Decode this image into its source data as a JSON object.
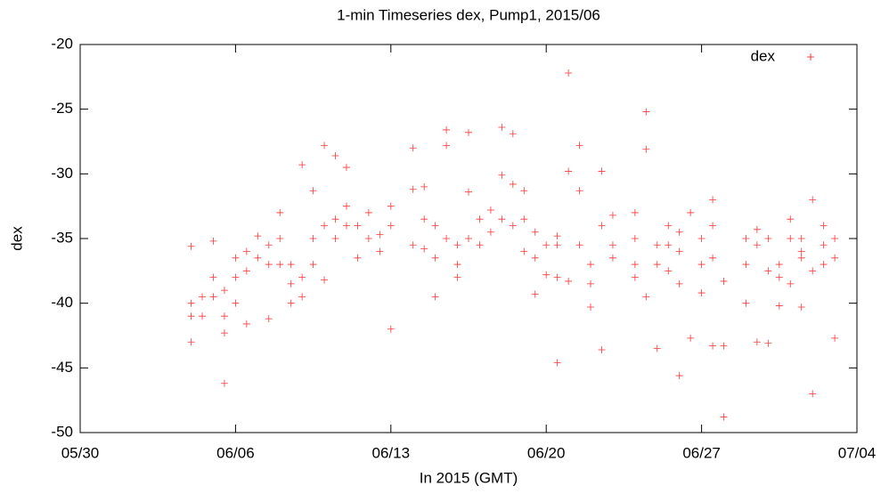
{
  "chart_data": {
    "type": "scatter",
    "title": "1-min Timeseries dex, Pump1, 2015/06",
    "x_label": "In 2015 (GMT)",
    "y_label": "dex",
    "legend": "top-right",
    "xlim": [
      "2015-05-30 00:00",
      "2015-07-04 00:00"
    ],
    "xticks": [
      {
        "value": "2015-05-30 00:00",
        "label": "05/30"
      },
      {
        "value": "2015-06-06 00:00",
        "label": "06/06"
      },
      {
        "value": "2015-06-13 00:00",
        "label": "06/13"
      },
      {
        "value": "2015-06-20 00:00",
        "label": "06/20"
      },
      {
        "value": "2015-06-27 00:00",
        "label": "06/27"
      },
      {
        "value": "2015-07-04 00:00",
        "label": "07/04"
      }
    ],
    "ylim": [
      -50,
      -20
    ],
    "yticks": [
      -50,
      -45,
      -40,
      -35,
      -30,
      -25,
      -20
    ],
    "x": [
      "2015-06-04 00:00",
      "2015-06-04 00:00",
      "2015-06-04 00:00",
      "2015-06-04 00:00",
      "2015-06-04 12:00",
      "2015-06-04 12:00",
      "2015-06-05 00:00",
      "2015-06-05 00:00",
      "2015-06-05 00:00",
      "2015-06-05 12:00",
      "2015-06-05 12:00",
      "2015-06-05 12:00",
      "2015-06-05 12:00",
      "2015-06-06 00:00",
      "2015-06-06 00:00",
      "2015-06-06 00:00",
      "2015-06-06 12:00",
      "2015-06-06 12:00",
      "2015-06-06 12:00",
      "2015-06-07 00:00",
      "2015-06-07 00:00",
      "2015-06-07 12:00",
      "2015-06-07 12:00",
      "2015-06-07 12:00",
      "2015-06-08 00:00",
      "2015-06-08 00:00",
      "2015-06-08 00:00",
      "2015-06-08 12:00",
      "2015-06-08 12:00",
      "2015-06-08 12:00",
      "2015-06-09 00:00",
      "2015-06-09 00:00",
      "2015-06-09 00:00",
      "2015-06-09 12:00",
      "2015-06-09 12:00",
      "2015-06-09 12:00",
      "2015-06-10 00:00",
      "2015-06-10 00:00",
      "2015-06-10 00:00",
      "2015-06-10 12:00",
      "2015-06-10 12:00",
      "2015-06-10 12:00",
      "2015-06-11 00:00",
      "2015-06-11 00:00",
      "2015-06-11 00:00",
      "2015-06-11 12:00",
      "2015-06-11 12:00",
      "2015-06-12 00:00",
      "2015-06-12 00:00",
      "2015-06-12 12:00",
      "2015-06-12 12:00",
      "2015-06-13 00:00",
      "2015-06-13 00:00",
      "2015-06-13 00:00",
      "2015-06-14 00:00",
      "2015-06-14 00:00",
      "2015-06-14 00:00",
      "2015-06-14 12:00",
      "2015-06-14 12:00",
      "2015-06-14 12:00",
      "2015-06-15 00:00",
      "2015-06-15 00:00",
      "2015-06-15 00:00",
      "2015-06-15 12:00",
      "2015-06-15 12:00",
      "2015-06-15 12:00",
      "2015-06-16 00:00",
      "2015-06-16 00:00",
      "2015-06-16 00:00",
      "2015-06-16 12:00",
      "2015-06-16 12:00",
      "2015-06-16 12:00",
      "2015-06-17 00:00",
      "2015-06-17 00:00",
      "2015-06-17 12:00",
      "2015-06-17 12:00",
      "2015-06-18 00:00",
      "2015-06-18 00:00",
      "2015-06-18 00:00",
      "2015-06-18 12:00",
      "2015-06-18 12:00",
      "2015-06-18 12:00",
      "2015-06-19 00:00",
      "2015-06-19 00:00",
      "2015-06-19 00:00",
      "2015-06-19 12:00",
      "2015-06-19 12:00",
      "2015-06-19 12:00",
      "2015-06-20 00:00",
      "2015-06-20 00:00",
      "2015-06-20 12:00",
      "2015-06-20 12:00",
      "2015-06-20 12:00",
      "2015-06-20 12:00",
      "2015-06-21 00:00",
      "2015-06-21 00:00",
      "2015-06-21 00:00",
      "2015-06-21 12:00",
      "2015-06-21 12:00",
      "2015-06-21 12:00",
      "2015-06-22 00:00",
      "2015-06-22 00:00",
      "2015-06-22 00:00",
      "2015-06-22 12:00",
      "2015-06-22 12:00",
      "2015-06-22 12:00",
      "2015-06-23 00:00",
      "2015-06-23 00:00",
      "2015-06-23 00:00",
      "2015-06-24 00:00",
      "2015-06-24 00:00",
      "2015-06-24 00:00",
      "2015-06-24 00:00",
      "2015-06-24 12:00",
      "2015-06-24 12:00",
      "2015-06-24 12:00",
      "2015-06-25 00:00",
      "2015-06-25 00:00",
      "2015-06-25 00:00",
      "2015-06-25 12:00",
      "2015-06-25 12:00",
      "2015-06-25 12:00",
      "2015-06-26 00:00",
      "2015-06-26 00:00",
      "2015-06-26 00:00",
      "2015-06-26 00:00",
      "2015-06-26 12:00",
      "2015-06-26 12:00",
      "2015-06-27 00:00",
      "2015-06-27 00:00",
      "2015-06-27 00:00",
      "2015-06-27 12:00",
      "2015-06-27 12:00",
      "2015-06-27 12:00",
      "2015-06-27 12:00",
      "2015-06-28 00:00",
      "2015-06-28 00:00",
      "2015-06-28 00:00",
      "2015-06-29 00:00",
      "2015-06-29 00:00",
      "2015-06-29 00:00",
      "2015-06-29 12:00",
      "2015-06-29 12:00",
      "2015-06-29 12:00",
      "2015-06-30 00:00",
      "2015-06-30 00:00",
      "2015-06-30 00:00",
      "2015-06-30 12:00",
      "2015-06-30 12:00",
      "2015-06-30 12:00",
      "2015-07-01 00:00",
      "2015-07-01 00:00",
      "2015-07-01 00:00",
      "2015-07-01 12:00",
      "2015-07-01 12:00",
      "2015-07-01 12:00",
      "2015-07-01 12:00",
      "2015-07-02 00:00",
      "2015-07-02 00:00",
      "2015-07-02 00:00",
      "2015-07-02 12:00",
      "2015-07-02 12:00",
      "2015-07-02 12:00",
      "2015-07-03 00:00",
      "2015-07-03 00:00",
      "2015-07-03 00:00"
    ],
    "series": [
      {
        "name": "dex",
        "color": "#ff0000",
        "values": [
          -40,
          -41,
          -43,
          -35.6,
          -39.5,
          -41,
          -38,
          -35.2,
          -39.5,
          -41,
          -42.3,
          -39,
          -46.2,
          -38,
          -40,
          -36.5,
          -37.5,
          -41.6,
          -36,
          -34.8,
          -36.5,
          -35.5,
          -41.2,
          -37,
          -35,
          -33,
          -37,
          -38.5,
          -40,
          -37,
          -38,
          -29.3,
          -39.5,
          -35,
          -31.3,
          -37,
          -34,
          -27.8,
          -38.2,
          -33.5,
          -28.6,
          -35,
          -32.5,
          -29.5,
          -34,
          -34,
          -36.5,
          -35,
          -33,
          -34.7,
          -36,
          -34,
          -32.5,
          -42,
          -35.5,
          -28,
          -31.2,
          -35.8,
          -31,
          -33.5,
          -36.5,
          -39.5,
          -34,
          -35,
          -26.6,
          -27.8,
          -37,
          -35.5,
          -38,
          -35,
          -26.8,
          -31.4,
          -35.5,
          -33.5,
          -34.5,
          -32.8,
          -33.5,
          -26.4,
          -30.1,
          -34,
          -26.9,
          -30.8,
          -33.5,
          -31.3,
          -36,
          -34.5,
          -39.3,
          -36.5,
          -35.5,
          -37.8,
          -34.8,
          -38,
          -44.6,
          -35.5,
          -22.2,
          -29.8,
          -38.3,
          -35.5,
          -27.8,
          -31.3,
          -38.5,
          -40.3,
          -37,
          -34,
          -29.8,
          -43.6,
          -35.5,
          -33.2,
          -36.5,
          -35,
          -33,
          -37,
          -38,
          -25.2,
          -28.1,
          -39.5,
          -35.5,
          -43.5,
          -37,
          -35.5,
          -34,
          -37.5,
          -36,
          -38.5,
          -45.6,
          -34.5,
          -33,
          -42.7,
          -37,
          -35,
          -39.2,
          -34,
          -32,
          -43.3,
          -36.5,
          -38.3,
          -43.3,
          -48.8,
          -35,
          -40,
          -37,
          -35.5,
          -34.3,
          -43,
          -35,
          -37.5,
          -43.1,
          -38,
          -40.2,
          -37,
          -35,
          -33.5,
          -38.5,
          -36.5,
          -40.3,
          -35,
          -36,
          -32,
          -37.5,
          -47,
          -35.5,
          -34,
          -37,
          -36.5,
          -35,
          -42.7
        ]
      }
    ]
  }
}
